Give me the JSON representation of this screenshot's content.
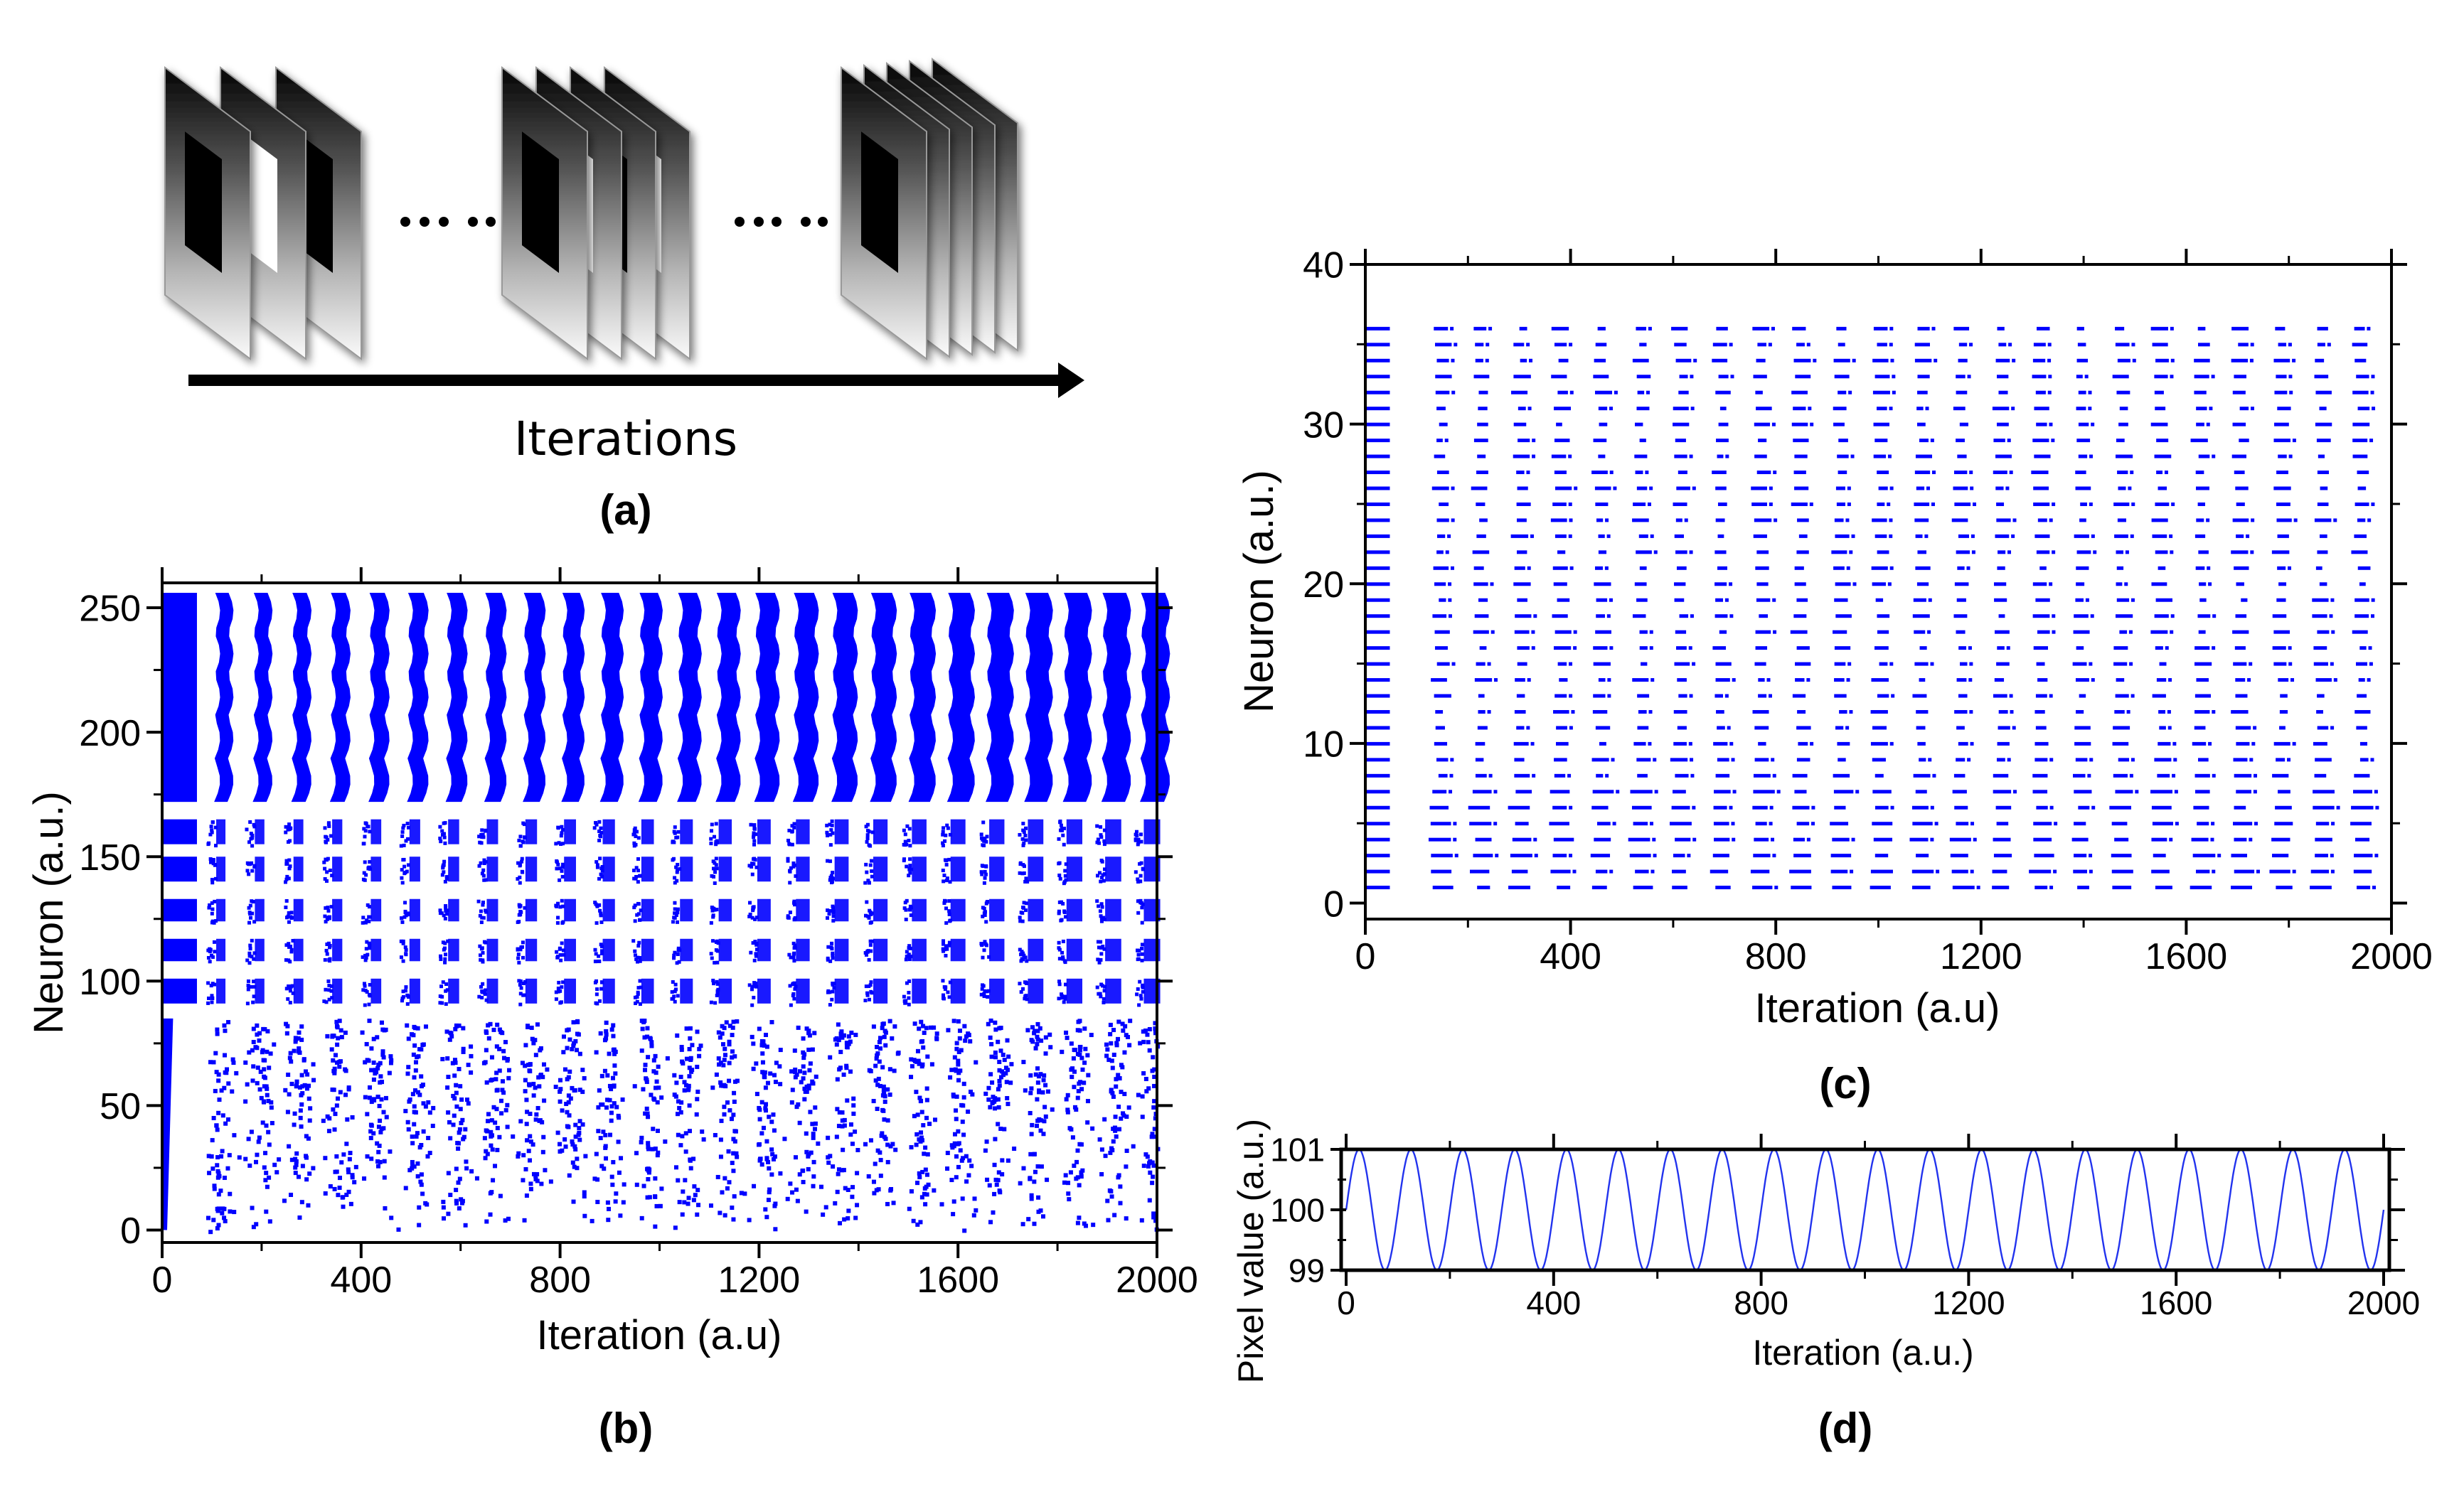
{
  "figure": {
    "panel_a": {
      "caption": "(a)",
      "arrow_label": "Iterations",
      "frame_groups": [
        {
          "frames": 3,
          "patterns": [
            "black",
            "white",
            "black"
          ]
        },
        {
          "frames": 4,
          "patterns": [
            "black",
            "white",
            "black",
            "white"
          ]
        },
        {
          "frames": 5,
          "patterns": [
            "black",
            "none",
            "none",
            "none",
            "none"
          ]
        }
      ],
      "ellipsis": "• • •  • •"
    },
    "colors": {
      "spike": "#0000ff",
      "sine": "#2233ee",
      "axis": "#000000"
    }
  },
  "chart_data": [
    {
      "id": "b",
      "type": "scatter",
      "caption": "(b)",
      "title": "",
      "xlabel": "Iteration (a.u)",
      "ylabel": "Neuron (a.u.)",
      "xlim": [
        0,
        2000
      ],
      "ylim": [
        -5,
        260
      ],
      "xticks": [
        "0",
        "400",
        "800",
        "1200",
        "1600",
        "2000"
      ],
      "xtick_values": [
        0,
        400,
        800,
        1200,
        1600,
        2000
      ],
      "yticks": [
        "0",
        "50",
        "100",
        "150",
        "200",
        "250"
      ],
      "ytick_values": [
        0,
        50,
        100,
        150,
        200,
        250
      ],
      "grid": false,
      "legend": "none",
      "description": "Raster plot of 256 neurons; dense bursts every ~78 iterations",
      "neuron_bands": [
        {
          "from": 172,
          "to": 256,
          "density": "dense"
        },
        {
          "from": 155,
          "to": 165,
          "density": "medium"
        },
        {
          "from": 140,
          "to": 150,
          "density": "medium"
        },
        {
          "from": 124,
          "to": 133,
          "density": "medium"
        },
        {
          "from": 108,
          "to": 117,
          "density": "medium"
        },
        {
          "from": 91,
          "to": 101,
          "density": "medium"
        },
        {
          "from": 0,
          "to": 85,
          "density": "sparse"
        }
      ],
      "burst_period": 78,
      "initial_burst_end": 70
    },
    {
      "id": "c",
      "type": "scatter",
      "caption": "(c)",
      "title": "",
      "xlabel": "Iteration (a.u)",
      "ylabel": "Neuron (a.u.)",
      "xlim": [
        0,
        2000
      ],
      "ylim": [
        -1,
        40
      ],
      "xticks": [
        "0",
        "400",
        "800",
        "1200",
        "1600",
        "2000"
      ],
      "xtick_values": [
        0,
        400,
        800,
        1200,
        1600,
        2000
      ],
      "yticks": [
        "0",
        "10",
        "20",
        "30",
        "40"
      ],
      "ytick_values": [
        0,
        10,
        20,
        30,
        40
      ],
      "grid": false,
      "legend": "none",
      "neurons": [
        1,
        36
      ],
      "burst_period": 78,
      "first_burst": [
        0,
        45
      ],
      "description": "Raster of 36 neurons firing in periodic bursts"
    },
    {
      "id": "d",
      "type": "line",
      "caption": "(d)",
      "title": "",
      "xlabel": "Iteration (a.u.)",
      "ylabel": "Pixel value (a.u.)",
      "xlim": [
        0,
        2000
      ],
      "ylim": [
        99,
        101
      ],
      "xticks": [
        "0",
        "400",
        "800",
        "1200",
        "1600",
        "2000"
      ],
      "xtick_values": [
        0,
        400,
        800,
        1200,
        1600,
        2000
      ],
      "yticks": [
        "99",
        "100",
        "101"
      ],
      "ytick_values": [
        99,
        100,
        101
      ],
      "grid": false,
      "legend": "none",
      "series": [
        {
          "name": "pixel value",
          "function": "100 + sin(2*pi*x/100)",
          "offset": 100,
          "amplitude": 1,
          "period": 100,
          "x_range": [
            0,
            2000
          ]
        }
      ]
    }
  ]
}
